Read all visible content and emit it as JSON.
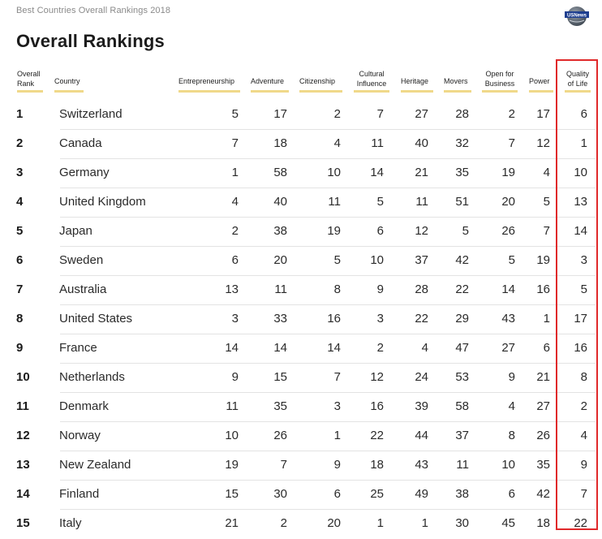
{
  "header": {
    "source_label": "Best Countries Overall Rankings 2018",
    "logo_text": "USNews",
    "title": "Overall Rankings"
  },
  "chart_data": {
    "type": "table",
    "columns": [
      {
        "key": "rank",
        "label_lines": [
          "Overall",
          "Rank"
        ]
      },
      {
        "key": "country",
        "label_lines": [
          "Country"
        ]
      },
      {
        "key": "entrepreneurship",
        "label_lines": [
          "Entrepreneurship"
        ]
      },
      {
        "key": "adventure",
        "label_lines": [
          "Adventure"
        ]
      },
      {
        "key": "citizenship",
        "label_lines": [
          "Citizenship"
        ]
      },
      {
        "key": "cultural_influence",
        "label_lines": [
          "Cultural",
          "Influence"
        ]
      },
      {
        "key": "heritage",
        "label_lines": [
          "Heritage"
        ]
      },
      {
        "key": "movers",
        "label_lines": [
          "Movers"
        ]
      },
      {
        "key": "open_for_business",
        "label_lines": [
          "Open for",
          "Business"
        ]
      },
      {
        "key": "power",
        "label_lines": [
          "Power"
        ]
      },
      {
        "key": "quality_of_life",
        "label_lines": [
          "Quality",
          "of Life"
        ]
      }
    ],
    "rows": [
      {
        "rank": "1",
        "country": "Switzerland",
        "entrepreneurship": "5",
        "adventure": "17",
        "citizenship": "2",
        "cultural_influence": "7",
        "heritage": "27",
        "movers": "28",
        "open_for_business": "2",
        "power": "17",
        "quality_of_life": "6"
      },
      {
        "rank": "2",
        "country": "Canada",
        "entrepreneurship": "7",
        "adventure": "18",
        "citizenship": "4",
        "cultural_influence": "11",
        "heritage": "40",
        "movers": "32",
        "open_for_business": "7",
        "power": "12",
        "quality_of_life": "1"
      },
      {
        "rank": "3",
        "country": "Germany",
        "entrepreneurship": "1",
        "adventure": "58",
        "citizenship": "10",
        "cultural_influence": "14",
        "heritage": "21",
        "movers": "35",
        "open_for_business": "19",
        "power": "4",
        "quality_of_life": "10"
      },
      {
        "rank": "4",
        "country": "United Kingdom",
        "entrepreneurship": "4",
        "adventure": "40",
        "citizenship": "11",
        "cultural_influence": "5",
        "heritage": "11",
        "movers": "51",
        "open_for_business": "20",
        "power": "5",
        "quality_of_life": "13"
      },
      {
        "rank": "5",
        "country": "Japan",
        "entrepreneurship": "2",
        "adventure": "38",
        "citizenship": "19",
        "cultural_influence": "6",
        "heritage": "12",
        "movers": "5",
        "open_for_business": "26",
        "power": "7",
        "quality_of_life": "14"
      },
      {
        "rank": "6",
        "country": "Sweden",
        "entrepreneurship": "6",
        "adventure": "20",
        "citizenship": "5",
        "cultural_influence": "10",
        "heritage": "37",
        "movers": "42",
        "open_for_business": "5",
        "power": "19",
        "quality_of_life": "3"
      },
      {
        "rank": "7",
        "country": "Australia",
        "entrepreneurship": "13",
        "adventure": "11",
        "citizenship": "8",
        "cultural_influence": "9",
        "heritage": "28",
        "movers": "22",
        "open_for_business": "14",
        "power": "16",
        "quality_of_life": "5"
      },
      {
        "rank": "8",
        "country": "United States",
        "entrepreneurship": "3",
        "adventure": "33",
        "citizenship": "16",
        "cultural_influence": "3",
        "heritage": "22",
        "movers": "29",
        "open_for_business": "43",
        "power": "1",
        "quality_of_life": "17"
      },
      {
        "rank": "9",
        "country": "France",
        "entrepreneurship": "14",
        "adventure": "14",
        "citizenship": "14",
        "cultural_influence": "2",
        "heritage": "4",
        "movers": "47",
        "open_for_business": "27",
        "power": "6",
        "quality_of_life": "16"
      },
      {
        "rank": "10",
        "country": "Netherlands",
        "entrepreneurship": "9",
        "adventure": "15",
        "citizenship": "7",
        "cultural_influence": "12",
        "heritage": "24",
        "movers": "53",
        "open_for_business": "9",
        "power": "21",
        "quality_of_life": "8"
      },
      {
        "rank": "11",
        "country": "Denmark",
        "entrepreneurship": "11",
        "adventure": "35",
        "citizenship": "3",
        "cultural_influence": "16",
        "heritage": "39",
        "movers": "58",
        "open_for_business": "4",
        "power": "27",
        "quality_of_life": "2"
      },
      {
        "rank": "12",
        "country": "Norway",
        "entrepreneurship": "10",
        "adventure": "26",
        "citizenship": "1",
        "cultural_influence": "22",
        "heritage": "44",
        "movers": "37",
        "open_for_business": "8",
        "power": "26",
        "quality_of_life": "4"
      },
      {
        "rank": "13",
        "country": "New Zealand",
        "entrepreneurship": "19",
        "adventure": "7",
        "citizenship": "9",
        "cultural_influence": "18",
        "heritage": "43",
        "movers": "11",
        "open_for_business": "10",
        "power": "35",
        "quality_of_life": "9"
      },
      {
        "rank": "14",
        "country": "Finland",
        "entrepreneurship": "15",
        "adventure": "30",
        "citizenship": "6",
        "cultural_influence": "25",
        "heritage": "49",
        "movers": "38",
        "open_for_business": "6",
        "power": "42",
        "quality_of_life": "7"
      },
      {
        "rank": "15",
        "country": "Italy",
        "entrepreneurship": "21",
        "adventure": "2",
        "citizenship": "20",
        "cultural_influence": "1",
        "heritage": "1",
        "movers": "30",
        "open_for_business": "45",
        "power": "18",
        "quality_of_life": "22"
      }
    ],
    "highlighted_column": "quality_of_life",
    "highlight_color": "#e0292a",
    "header_underline_color": "#f0d98a",
    "grid": "horizontal row separators"
  }
}
